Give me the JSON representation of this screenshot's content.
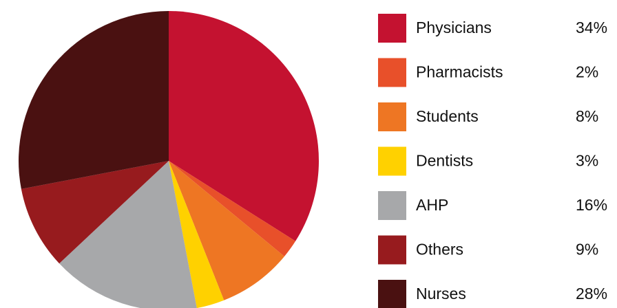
{
  "chart_data": {
    "type": "pie",
    "categories": [
      "Physicians",
      "Pharmacists",
      "Students",
      "Dentists",
      "AHP",
      "Others",
      "Nurses"
    ],
    "values": [
      34,
      2,
      8,
      3,
      16,
      9,
      28
    ],
    "value_labels": [
      "34%",
      "2%",
      "8%",
      "3%",
      "16%",
      "9%",
      "28%"
    ],
    "colors": [
      "#c41230",
      "#e8502a",
      "#ee7623",
      "#ffd100",
      "#a7a8aa",
      "#971b1e",
      "#4a1111"
    ],
    "legend": "right"
  }
}
